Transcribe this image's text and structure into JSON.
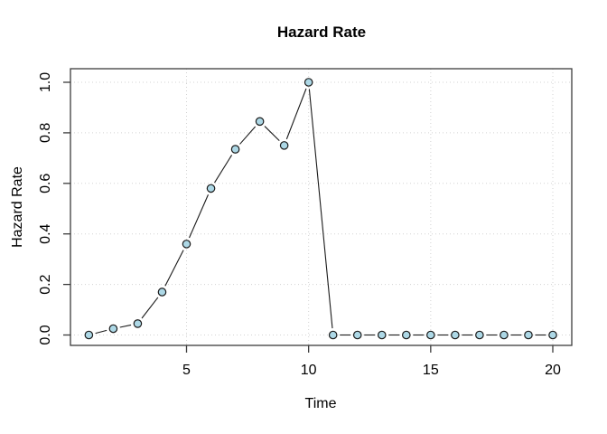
{
  "chart": {
    "title": "Hazard Rate",
    "xlabel": "Time",
    "ylabel": "Hazard Rate"
  },
  "chart_data": {
    "type": "line",
    "style": "points-and-lines (R type='b', pch=21)",
    "title": "Hazard Rate",
    "xlabel": "Time",
    "ylabel": "Hazard Rate",
    "x": [
      1,
      2,
      3,
      4,
      5,
      6,
      7,
      8,
      9,
      10,
      11,
      12,
      13,
      14,
      15,
      16,
      17,
      18,
      19,
      20
    ],
    "y": [
      0.0,
      0.025,
      0.045,
      0.17,
      0.36,
      0.58,
      0.735,
      0.845,
      0.75,
      1.0,
      0.0,
      0.0,
      0.0,
      0.0,
      0.0,
      0.0,
      0.0,
      0.0,
      0.0,
      0.0
    ],
    "xlim": [
      0.24,
      20.76
    ],
    "ylim": [
      -0.04,
      1.04
    ],
    "x_ticks": [
      5,
      10,
      15,
      20
    ],
    "x_tick_labels": [
      "5",
      "10",
      "15",
      "20"
    ],
    "y_ticks": [
      0.0,
      0.2,
      0.4,
      0.6,
      0.8,
      1.0
    ],
    "y_tick_labels": [
      "0.0",
      "0.2",
      "0.4",
      "0.6",
      "0.8",
      "1.0"
    ],
    "grid": true,
    "legend": "none",
    "colors": {
      "marker_fill": "#ADD8E6",
      "marker_stroke": "#1A1A1A",
      "line": "#1A1A1A",
      "grid": "#D3D3D3",
      "frame": "#3C3C3C",
      "text": "#000000",
      "background": "#FFFFFF"
    }
  }
}
